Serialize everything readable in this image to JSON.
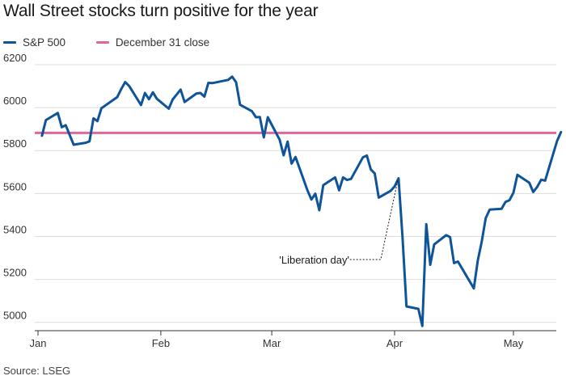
{
  "title": "Wall Street stocks turn positive for the year",
  "source": "Source: LSEG",
  "legend": [
    {
      "label": "S&P 500",
      "color": "#0f5499"
    },
    {
      "label": "December 31 close",
      "color": "#e0669c"
    }
  ],
  "chart_data": {
    "type": "line",
    "title": "Wall Street stocks turn positive for the year",
    "xlabel": "",
    "ylabel": "",
    "x_ticks": [
      "Jan",
      "Feb",
      "Mar",
      "Apr",
      "May"
    ],
    "y_ticks": [
      5000,
      5200,
      5400,
      5600,
      5800,
      6000,
      6200
    ],
    "ylim": [
      4980,
      6230
    ],
    "grid": true,
    "legend_position": "top-left",
    "reference_line": {
      "name": "December 31 close",
      "value": 5882,
      "color": "#e0669c"
    },
    "series": [
      {
        "name": "S&P 500",
        "color": "#0f5499",
        "x": [
          "2025-01-02",
          "2025-01-03",
          "2025-01-06",
          "2025-01-07",
          "2025-01-08",
          "2025-01-10",
          "2025-01-13",
          "2025-01-14",
          "2025-01-15",
          "2025-01-16",
          "2025-01-17",
          "2025-01-21",
          "2025-01-22",
          "2025-01-23",
          "2025-01-24",
          "2025-01-27",
          "2025-01-28",
          "2025-01-29",
          "2025-01-30",
          "2025-01-31",
          "2025-02-03",
          "2025-02-04",
          "2025-02-05",
          "2025-02-06",
          "2025-02-07",
          "2025-02-10",
          "2025-02-11",
          "2025-02-12",
          "2025-02-13",
          "2025-02-14",
          "2025-02-18",
          "2025-02-19",
          "2025-02-20",
          "2025-02-21",
          "2025-02-24",
          "2025-02-25",
          "2025-02-26",
          "2025-02-27",
          "2025-02-28",
          "2025-03-03",
          "2025-03-04",
          "2025-03-05",
          "2025-03-06",
          "2025-03-07",
          "2025-03-10",
          "2025-03-11",
          "2025-03-12",
          "2025-03-13",
          "2025-03-14",
          "2025-03-17",
          "2025-03-18",
          "2025-03-19",
          "2025-03-20",
          "2025-03-21",
          "2025-03-24",
          "2025-03-25",
          "2025-03-26",
          "2025-03-27",
          "2025-03-28",
          "2025-03-31",
          "2025-04-01",
          "2025-04-02",
          "2025-04-03",
          "2025-04-04",
          "2025-04-07",
          "2025-04-08",
          "2025-04-09",
          "2025-04-10",
          "2025-04-11",
          "2025-04-14",
          "2025-04-15",
          "2025-04-16",
          "2025-04-17",
          "2025-04-21",
          "2025-04-22",
          "2025-04-23",
          "2025-04-24",
          "2025-04-25",
          "2025-04-28",
          "2025-04-29",
          "2025-04-30",
          "2025-05-01",
          "2025-05-02",
          "2025-05-05",
          "2025-05-06",
          "2025-05-07",
          "2025-05-08",
          "2025-05-09",
          "2025-05-12",
          "2025-05-13"
        ],
        "y": [
          5869,
          5942,
          5975,
          5909,
          5918,
          5827,
          5836,
          5843,
          5950,
          5937,
          5997,
          6049,
          6086,
          6119,
          6101,
          6012,
          6068,
          6039,
          6071,
          6041,
          5995,
          6038,
          6061,
          6084,
          6026,
          6066,
          6068,
          6051,
          6115,
          6114,
          6129,
          6144,
          6118,
          6013,
          5983,
          5955,
          5956,
          5861,
          5955,
          5850,
          5778,
          5842,
          5739,
          5770,
          5615,
          5572,
          5599,
          5522,
          5639,
          5675,
          5615,
          5675,
          5663,
          5668,
          5768,
          5777,
          5712,
          5693,
          5581,
          5612,
          5633,
          5671,
          5397,
          5074,
          5063,
          4983,
          5457,
          5268,
          5363,
          5406,
          5397,
          5276,
          5283,
          5158,
          5288,
          5376,
          5485,
          5525,
          5529,
          5561,
          5569,
          5604,
          5687,
          5650,
          5607,
          5631,
          5664,
          5660,
          5844,
          5886
        ]
      }
    ],
    "annotations": [
      {
        "text": "'Liberation day'",
        "x": "2025-04-02",
        "y": 5671
      }
    ]
  }
}
